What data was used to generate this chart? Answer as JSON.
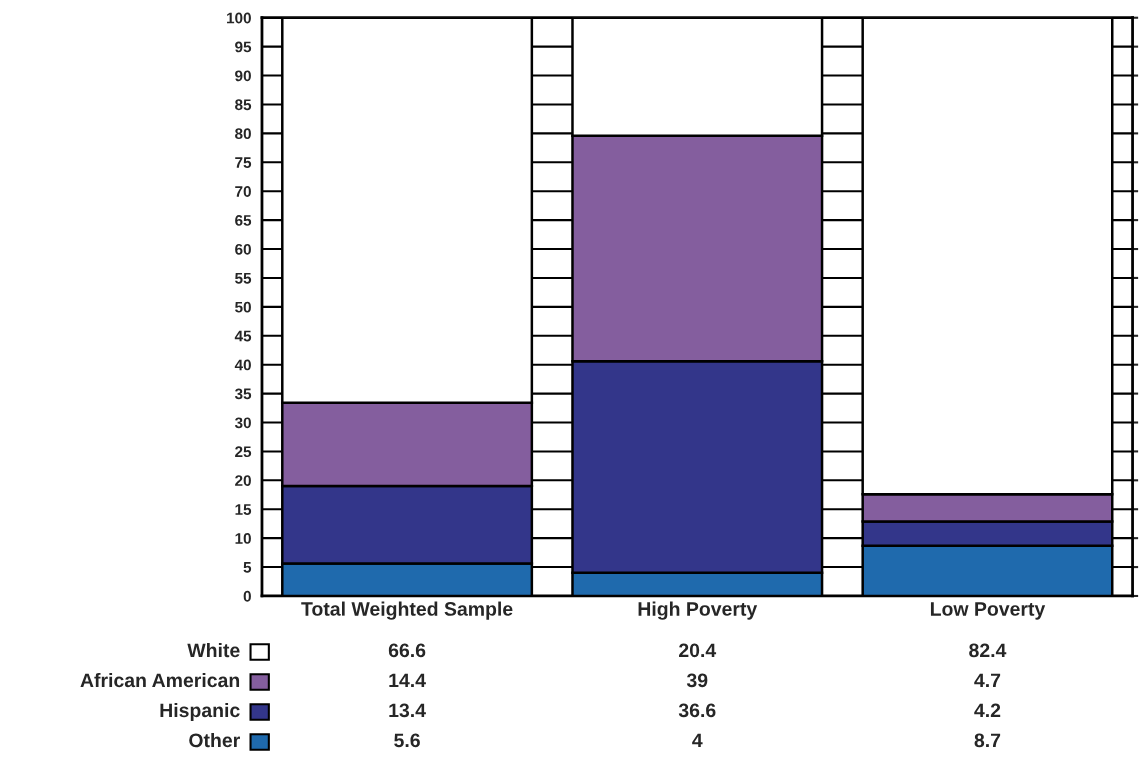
{
  "chart_data": {
    "type": "bar",
    "stacked": true,
    "categories": [
      "Total Weighted Sample",
      "High Poverty",
      "Low Poverty"
    ],
    "series": [
      {
        "name": "Other",
        "color": "#1f6aad",
        "values": [
          5.6,
          4,
          8.7
        ]
      },
      {
        "name": "Hispanic",
        "color": "#33368a",
        "values": [
          13.4,
          36.6,
          4.2
        ]
      },
      {
        "name": "African American",
        "color": "#845e9e",
        "values": [
          14.4,
          39,
          4.7
        ]
      },
      {
        "name": "White",
        "color": "#ffffff",
        "values": [
          66.6,
          20.4,
          82.4
        ]
      }
    ],
    "ylim": [
      0,
      100
    ],
    "yticks": [
      0,
      5,
      10,
      15,
      20,
      25,
      30,
      35,
      40,
      45,
      50,
      55,
      60,
      65,
      70,
      75,
      80,
      85,
      90,
      95,
      100
    ],
    "grid": "y",
    "legend": "bottom left",
    "data_labels": true
  }
}
